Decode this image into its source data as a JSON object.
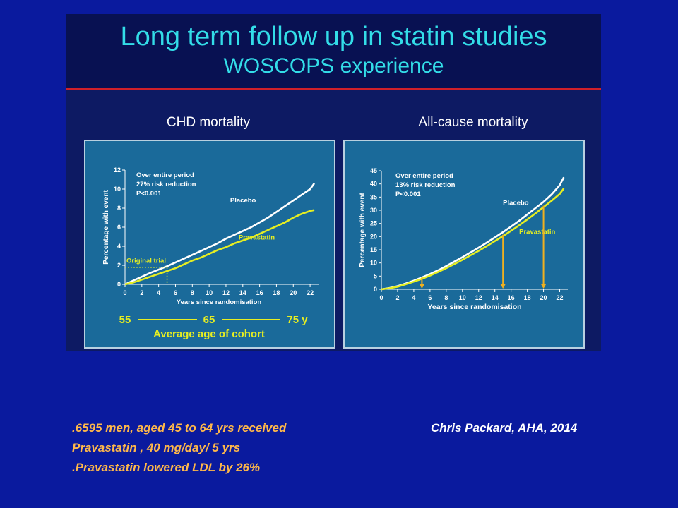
{
  "slide": {
    "title": "Long term follow up in statin studies",
    "subtitle": "WOSCOPS experience",
    "notes": [
      ".6595 men, aged 45 to 64 yrs received",
      "Pravastatin , 40 mg/day/ 5 yrs",
      ".Pravastatin lowered LDL by 26%"
    ],
    "credit": "Chris Packard, AHA, 2014",
    "colors": {
      "background": "#0a1a9e",
      "title": "#33dde8",
      "rule": "#d0202a",
      "plot_bg": "#1a6a9a",
      "placebo": "#ffffff",
      "pravastatin": "#e6ee22",
      "arrow": "#f0b020"
    }
  },
  "chart_data": [
    {
      "type": "line",
      "title": "CHD mortality",
      "xlabel": "Years since randomisation",
      "ylabel": "Percentage with event",
      "xlim": [
        0,
        23
      ],
      "ylim": [
        0,
        12
      ],
      "xticks": [
        "0",
        "2",
        "4",
        "6",
        "8",
        "10",
        "12",
        "14",
        "16",
        "18",
        "20",
        "22"
      ],
      "yticks": [
        "0",
        "2",
        "4",
        "6",
        "8",
        "10",
        "12"
      ],
      "annotation_lines": [
        "Over entire period",
        "27% risk reduction",
        "P<0.001"
      ],
      "series": [
        {
          "name": "Placebo",
          "x": [
            0,
            1,
            2,
            3,
            4,
            5,
            6,
            7,
            8,
            9,
            10,
            11,
            12,
            13,
            14,
            15,
            16,
            17,
            18,
            19,
            20,
            21,
            22,
            22.5
          ],
          "y": [
            0,
            0.4,
            0.8,
            1.2,
            1.55,
            1.9,
            2.3,
            2.7,
            3.1,
            3.5,
            3.9,
            4.3,
            4.8,
            5.2,
            5.6,
            6.0,
            6.5,
            7.0,
            7.6,
            8.2,
            8.8,
            9.4,
            10.0,
            10.6
          ]
        },
        {
          "name": "Pravastatin",
          "x": [
            0,
            1,
            2,
            3,
            4,
            5,
            6,
            7,
            8,
            9,
            10,
            11,
            12,
            13,
            14,
            15,
            16,
            17,
            18,
            19,
            20,
            21,
            22,
            22.5
          ],
          "y": [
            0,
            0.2,
            0.5,
            0.8,
            1.1,
            1.4,
            1.7,
            2.1,
            2.5,
            2.8,
            3.2,
            3.6,
            3.9,
            4.3,
            4.6,
            4.9,
            5.3,
            5.7,
            6.1,
            6.5,
            7.0,
            7.4,
            7.7,
            7.8
          ]
        }
      ],
      "original_trial": {
        "label": "Original trial",
        "x": 5,
        "y": 1.8
      },
      "age_axis": {
        "start": "55",
        "mid": "65",
        "end": "75 y",
        "label": "Average age of cohort"
      }
    },
    {
      "type": "line",
      "title": "All-cause mortality",
      "xlabel": "Years since randomisation",
      "ylabel": "Percentage with event",
      "xlim": [
        0,
        23
      ],
      "ylim": [
        0,
        45
      ],
      "xticks": [
        "0",
        "2",
        "4",
        "6",
        "8",
        "10",
        "12",
        "14",
        "16",
        "18",
        "20",
        "22"
      ],
      "yticks": [
        "0",
        "5",
        "10",
        "15",
        "20",
        "25",
        "30",
        "35",
        "40",
        "45"
      ],
      "annotation_lines": [
        "Over entire period",
        "13% risk reduction",
        "P<0.001"
      ],
      "series": [
        {
          "name": "Placebo",
          "x": [
            0,
            1,
            2,
            3,
            4,
            5,
            6,
            7,
            8,
            9,
            10,
            11,
            12,
            13,
            14,
            15,
            16,
            17,
            18,
            19,
            20,
            21,
            22,
            22.5
          ],
          "y": [
            0,
            0.5,
            1.2,
            2.2,
            3.3,
            4.5,
            5.8,
            7.2,
            8.8,
            10.5,
            12.2,
            14.0,
            15.8,
            17.7,
            19.7,
            21.7,
            23.8,
            26.0,
            28.4,
            30.8,
            33.2,
            36.0,
            39.5,
            42.5
          ]
        },
        {
          "name": "Pravastatin",
          "x": [
            0,
            1,
            2,
            3,
            4,
            5,
            6,
            7,
            8,
            9,
            10,
            11,
            12,
            13,
            14,
            15,
            16,
            17,
            18,
            19,
            20,
            21,
            22,
            22.5
          ],
          "y": [
            0,
            0.4,
            1.0,
            1.9,
            2.9,
            4.0,
            5.2,
            6.6,
            8.0,
            9.6,
            11.2,
            12.9,
            14.6,
            16.4,
            18.3,
            20.2,
            22.2,
            24.3,
            26.5,
            28.8,
            31.2,
            33.6,
            36.2,
            38.3
          ]
        }
      ],
      "arrows_at_years": [
        5,
        15,
        20
      ]
    }
  ]
}
